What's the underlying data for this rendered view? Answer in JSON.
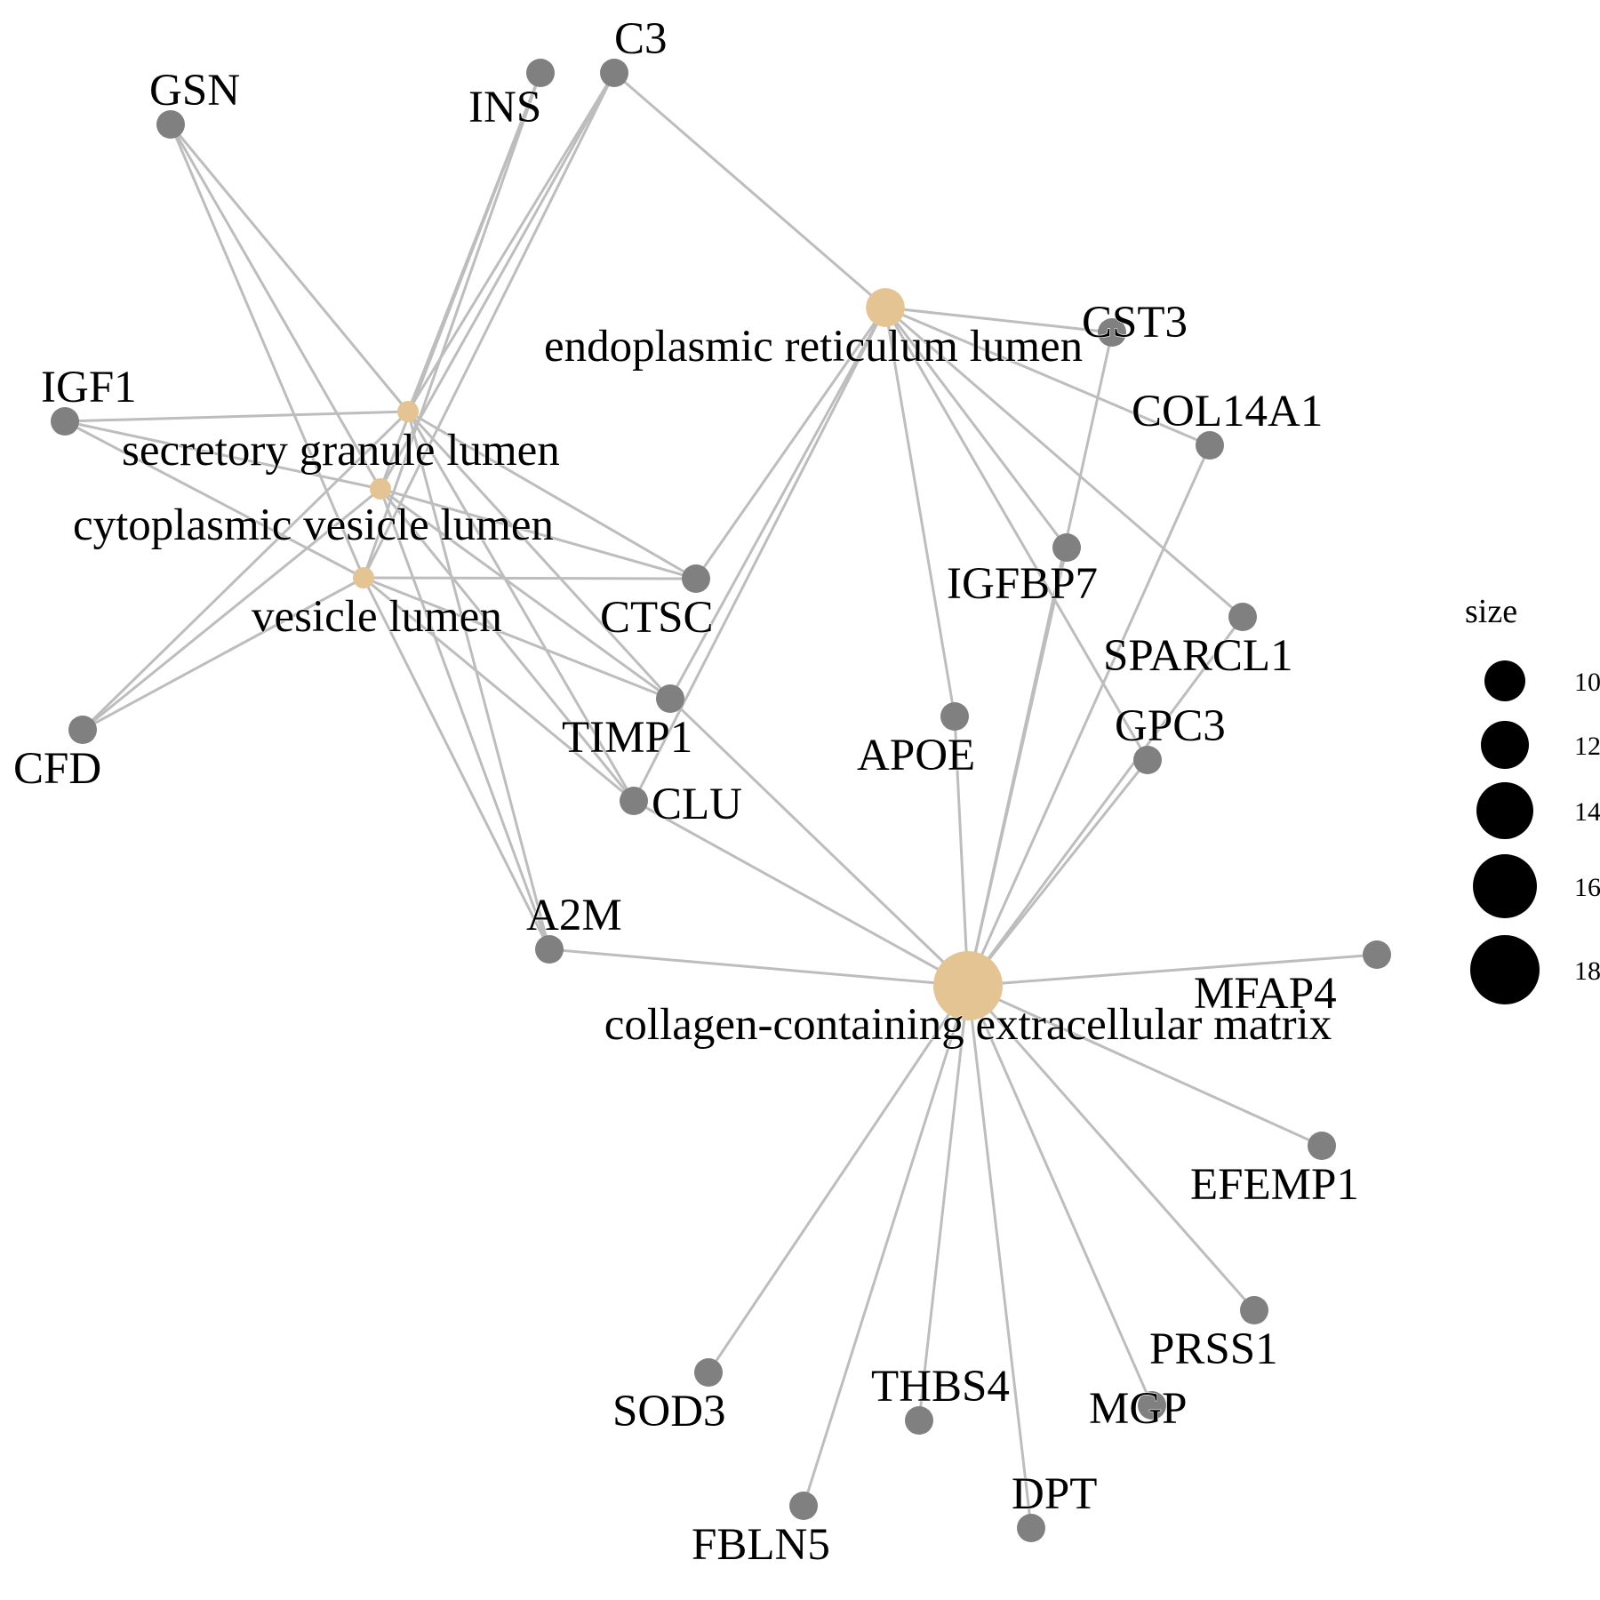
{
  "colors": {
    "term_node": "#e5c494",
    "gene_node": "#808080",
    "edge": "#bdbdbd",
    "legend_dot": "#000000"
  },
  "terms": [
    {
      "id": "ecm",
      "label": "collagen-containing extracellular matrix",
      "size": 19
    },
    {
      "id": "er",
      "label": "endoplasmic reticulum lumen",
      "size": 12
    },
    {
      "id": "sgl",
      "label": "secretory granule lumen",
      "size": 8
    },
    {
      "id": "cvl",
      "label": "cytoplasmic vesicle lumen",
      "size": 8
    },
    {
      "id": "vl",
      "label": "vesicle lumen",
      "size": 8
    }
  ],
  "genes": [
    {
      "id": "GSN",
      "label": "GSN"
    },
    {
      "id": "INS",
      "label": "INS"
    },
    {
      "id": "C3",
      "label": "C3"
    },
    {
      "id": "IGF1",
      "label": "IGF1"
    },
    {
      "id": "CFD",
      "label": "CFD"
    },
    {
      "id": "CTSC",
      "label": "CTSC"
    },
    {
      "id": "TIMP1",
      "label": "TIMP1"
    },
    {
      "id": "CLU",
      "label": "CLU"
    },
    {
      "id": "A2M",
      "label": "A2M"
    },
    {
      "id": "CST3",
      "label": "CST3"
    },
    {
      "id": "COL14A1",
      "label": "COL14A1"
    },
    {
      "id": "IGFBP7",
      "label": "IGFBP7"
    },
    {
      "id": "SPARCL1",
      "label": "SPARCL1"
    },
    {
      "id": "APOE",
      "label": "APOE"
    },
    {
      "id": "GPC3",
      "label": "GPC3"
    },
    {
      "id": "MFAP4",
      "label": "MFAP4"
    },
    {
      "id": "EFEMP1",
      "label": "EFEMP1"
    },
    {
      "id": "PRSS1",
      "label": "PRSS1"
    },
    {
      "id": "MGP",
      "label": "MGP"
    },
    {
      "id": "THBS4",
      "label": "THBS4"
    },
    {
      "id": "SOD3",
      "label": "SOD3"
    },
    {
      "id": "FBLN5",
      "label": "FBLN5"
    },
    {
      "id": "DPT",
      "label": "DPT"
    }
  ],
  "edges": [
    [
      "sgl",
      "GSN"
    ],
    [
      "cvl",
      "GSN"
    ],
    [
      "vl",
      "GSN"
    ],
    [
      "sgl",
      "INS"
    ],
    [
      "cvl",
      "INS"
    ],
    [
      "vl",
      "INS"
    ],
    [
      "sgl",
      "C3"
    ],
    [
      "cvl",
      "C3"
    ],
    [
      "vl",
      "C3"
    ],
    [
      "er",
      "C3"
    ],
    [
      "sgl",
      "IGF1"
    ],
    [
      "cvl",
      "IGF1"
    ],
    [
      "vl",
      "IGF1"
    ],
    [
      "sgl",
      "CFD"
    ],
    [
      "cvl",
      "CFD"
    ],
    [
      "vl",
      "CFD"
    ],
    [
      "sgl",
      "CTSC"
    ],
    [
      "cvl",
      "CTSC"
    ],
    [
      "vl",
      "CTSC"
    ],
    [
      "er",
      "CTSC"
    ],
    [
      "sgl",
      "TIMP1"
    ],
    [
      "cvl",
      "TIMP1"
    ],
    [
      "vl",
      "TIMP1"
    ],
    [
      "er",
      "TIMP1"
    ],
    [
      "ecm",
      "TIMP1"
    ],
    [
      "sgl",
      "CLU"
    ],
    [
      "cvl",
      "CLU"
    ],
    [
      "vl",
      "CLU"
    ],
    [
      "er",
      "CLU"
    ],
    [
      "ecm",
      "CLU"
    ],
    [
      "sgl",
      "A2M"
    ],
    [
      "cvl",
      "A2M"
    ],
    [
      "vl",
      "A2M"
    ],
    [
      "ecm",
      "A2M"
    ],
    [
      "er",
      "CST3"
    ],
    [
      "ecm",
      "CST3"
    ],
    [
      "er",
      "COL14A1"
    ],
    [
      "ecm",
      "COL14A1"
    ],
    [
      "er",
      "IGFBP7"
    ],
    [
      "ecm",
      "IGFBP7"
    ],
    [
      "er",
      "SPARCL1"
    ],
    [
      "ecm",
      "SPARCL1"
    ],
    [
      "er",
      "APOE"
    ],
    [
      "ecm",
      "APOE"
    ],
    [
      "er",
      "GPC3"
    ],
    [
      "ecm",
      "GPC3"
    ],
    [
      "ecm",
      "MFAP4"
    ],
    [
      "ecm",
      "EFEMP1"
    ],
    [
      "ecm",
      "PRSS1"
    ],
    [
      "ecm",
      "MGP"
    ],
    [
      "ecm",
      "THBS4"
    ],
    [
      "ecm",
      "SOD3"
    ],
    [
      "ecm",
      "FBLN5"
    ],
    [
      "ecm",
      "DPT"
    ]
  ],
  "legend": {
    "title": "size",
    "items": [
      {
        "label": "10",
        "value": 10
      },
      {
        "label": "12",
        "value": 12
      },
      {
        "label": "14",
        "value": 14
      },
      {
        "label": "16",
        "value": 16
      },
      {
        "label": "18",
        "value": 18
      }
    ]
  }
}
